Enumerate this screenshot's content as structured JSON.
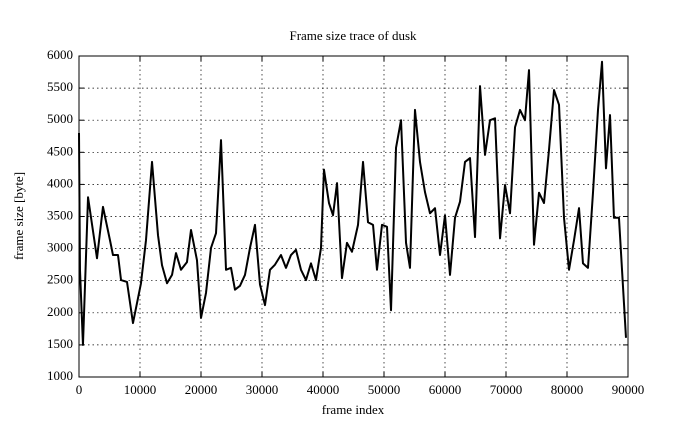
{
  "chart_data": {
    "type": "line",
    "title": "Frame size trace of dusk",
    "x_label": "frame index",
    "y_label": "frame size [byte]",
    "x": [
      0,
      160,
      650,
      1480,
      2950,
      3930,
      5080,
      5570,
      6390,
      6890,
      7870,
      8850,
      10160,
      10980,
      11970,
      12950,
      13610,
      14430,
      15250,
      15900,
      16720,
      17700,
      18360,
      19340,
      20000,
      20820,
      21640,
      22460,
      23280,
      24100,
      24920,
      25570,
      26390,
      27210,
      28030,
      28850,
      29670,
      30490,
      31310,
      32130,
      33110,
      33930,
      34750,
      35570,
      36390,
      37210,
      38030,
      38850,
      39670,
      40160,
      40980,
      41640,
      42300,
      43110,
      43930,
      44750,
      45740,
      46560,
      47380,
      48200,
      48850,
      49670,
      50490,
      51150,
      51970,
      52790,
      53610,
      54260,
      55080,
      55900,
      56720,
      57540,
      58360,
      59180,
      60000,
      60820,
      61640,
      62460,
      63280,
      64100,
      64920,
      65740,
      66560,
      67380,
      68200,
      69020,
      69840,
      70660,
      71480,
      72300,
      73110,
      73770,
      74590,
      75410,
      76230,
      77050,
      77870,
      78690,
      79510,
      80330,
      81150,
      81970,
      82620,
      83440,
      84260,
      85080,
      85740,
      86390,
      87050,
      87700,
      88520,
      89670
    ],
    "series": [
      {
        "name": "dusk",
        "color": "#000000",
        "values": [
          4800,
          2670,
          1500,
          3800,
          2850,
          3650,
          3130,
          2900,
          2900,
          2510,
          2480,
          1840,
          2460,
          3130,
          4350,
          3210,
          2740,
          2460,
          2590,
          2930,
          2670,
          2790,
          3290,
          2820,
          1920,
          2310,
          3010,
          3240,
          4690,
          2670,
          2700,
          2360,
          2420,
          2590,
          3010,
          3370,
          2440,
          2120,
          2670,
          2750,
          2900,
          2700,
          2900,
          2980,
          2670,
          2510,
          2770,
          2510,
          3010,
          4230,
          3710,
          3520,
          4020,
          2540,
          3090,
          2950,
          3370,
          4350,
          3410,
          3370,
          2670,
          3370,
          3340,
          2040,
          4570,
          5000,
          3090,
          2700,
          5160,
          4350,
          3880,
          3550,
          3630,
          2900,
          3520,
          2590,
          3480,
          3730,
          4350,
          4410,
          3180,
          5530,
          4460,
          5000,
          5030,
          3160,
          3990,
          3550,
          4890,
          5160,
          5000,
          5780,
          3060,
          3870,
          3710,
          4540,
          5470,
          5240,
          3480,
          2670,
          3130,
          3630,
          2770,
          2700,
          3870,
          5160,
          5910,
          4250,
          5080,
          3480,
          3480,
          1610
        ]
      }
    ],
    "xlim": [
      0,
      90000
    ],
    "xticks": [
      0,
      10000,
      20000,
      30000,
      40000,
      50000,
      60000,
      70000,
      80000,
      90000
    ],
    "ylim": [
      1000,
      6000
    ],
    "yticks": [
      1000,
      1500,
      2000,
      2500,
      3000,
      3500,
      4000,
      4500,
      5000,
      5500,
      6000
    ],
    "grid": true
  }
}
